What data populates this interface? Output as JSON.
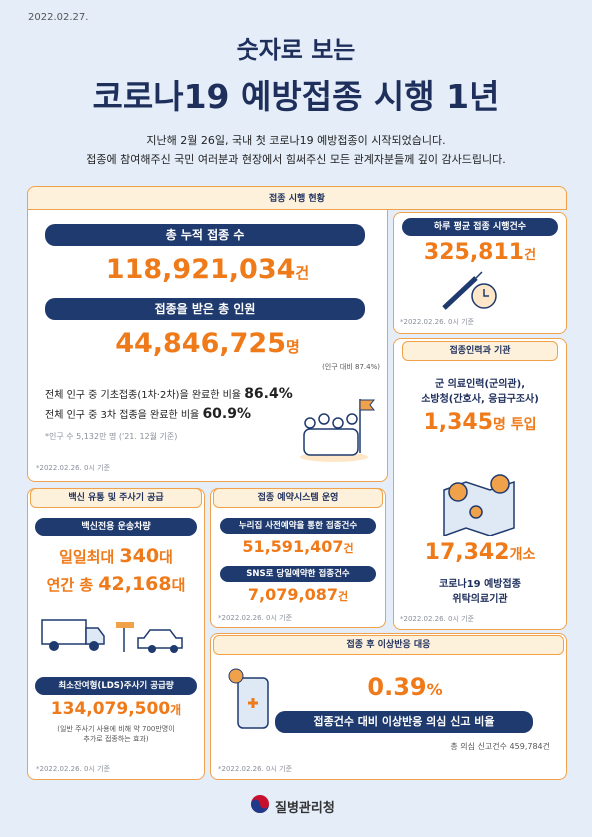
{
  "date": "2022.02.27.",
  "header": {
    "subtitle": "숫자로 보는",
    "title": "코로나19 예방접종 시행 1년",
    "lines": [
      "지난해 2월 26일, 국내 첫 코로나19 예방접종이 시작되었습니다.",
      "접종에 참여해주신 국민 여러분과 현장에서 힘써주신 모든 관계자분들께 깊이 감사드립니다."
    ]
  },
  "status": {
    "title": "접종 시행 현황",
    "total_label": "총 누적 접종 수",
    "total_value": "118,921,034",
    "total_unit": "건",
    "people_label": "접종을 받은 총 인원",
    "people_value": "44,846,725",
    "people_unit": "명",
    "people_ratio": "(인구 대비 87.4%)",
    "basic_label": "전체 인구 중 기초접종(1차·2차)을 완료한 비율",
    "basic_value": "86.4%",
    "third_label": "전체 인구 중 3차 접종을 완료한 비율",
    "third_value": "60.9%",
    "population_note": "*인구 수 5,132만 명 ('21. 12월 기준)",
    "date_note": "*2022.02.26. 0시 기준"
  },
  "daily": {
    "title": "하루 평균 접종 시행건수",
    "value": "325,811",
    "unit": "건",
    "date_note": "*2022.02.26. 0시 기준"
  },
  "staff": {
    "title": "접종인력과 기관",
    "line1": "군 의료인력(군의관),",
    "line2": "소방청(간호사, 응급구조사)",
    "value": "1,345",
    "unit": "명 투입",
    "sites_value": "17,342",
    "sites_unit": "개소",
    "sites_line1": "코로나19 예방접종",
    "sites_line2": "위탁의료기관",
    "date_note": "*2022.02.26. 0시 기준"
  },
  "supply": {
    "title": "백신 유통 및 주사기 공급",
    "vehicle_label": "백신전용 운송차량",
    "daily_label": "일일최대",
    "daily_value": "340",
    "daily_unit": "대",
    "yearly_label": "연간 총",
    "yearly_value": "42,168",
    "yearly_unit": "대",
    "syringe_label": "최소잔여형(LDS)주사기 공급량",
    "syringe_value": "134,079,500",
    "syringe_unit": "개",
    "syringe_note1": "(일반 주사기 사용에 비해 약 700만명이",
    "syringe_note2": "추가로 접종하는 효과)",
    "date_note": "*2022.02.26. 0시 기준"
  },
  "booking": {
    "title": "접종 예약시스템 운영",
    "web_label": "누리집 사전예약을 통한 접종건수",
    "web_value": "51,591,407",
    "web_unit": "건",
    "sns_label": "SNS로 당일예약한 접종건수",
    "sns_value": "7,079,087",
    "sns_unit": "건",
    "date_note": "*2022.02.26. 0시 기준"
  },
  "adverse": {
    "title": "접종 후 이상반응 대응",
    "value": "0.39",
    "unit": "%",
    "label": "접종건수 대비 이상반응 의심 신고 비율",
    "total_note": "총 의심 신고건수 459,784건",
    "date_note": "*2022.02.26. 0시 기준"
  },
  "footer": {
    "agency": "질병관리청"
  }
}
